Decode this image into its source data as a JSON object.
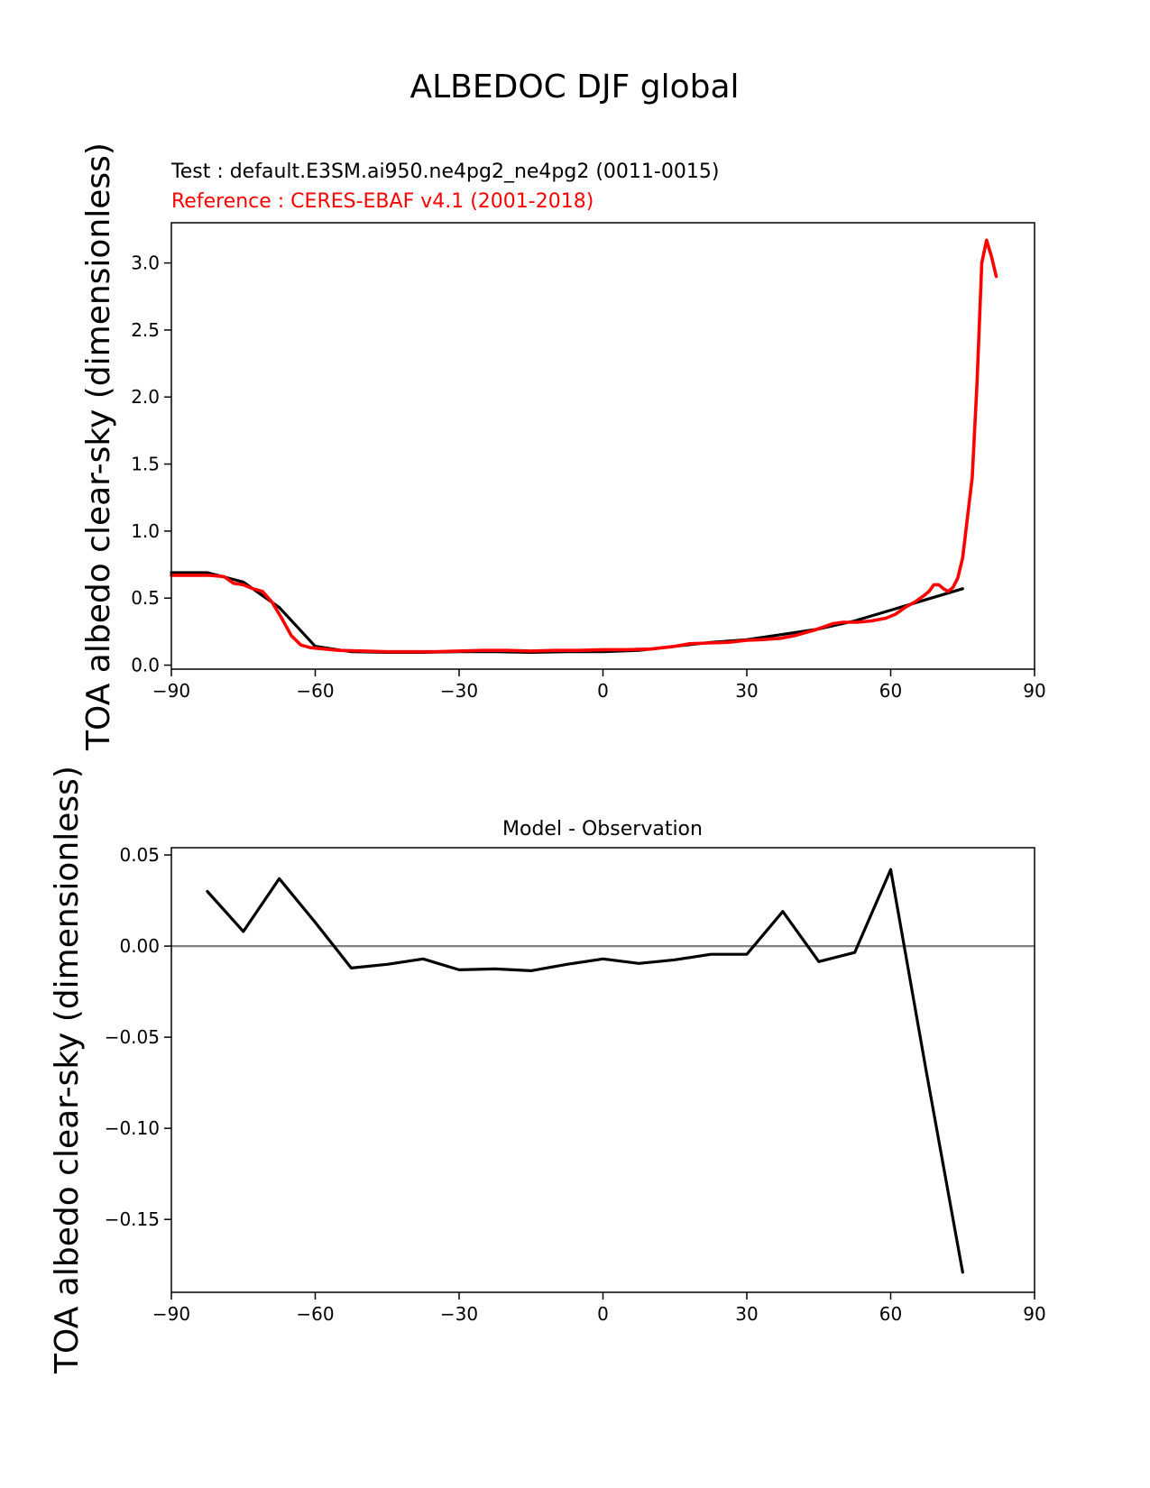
{
  "figure": {
    "suptitle": "ALBEDOC DJF global",
    "test_label": "Test : default.E3SM.ai950.ne4pg2_ne4pg2 (0011-0015)",
    "reference_label": "Reference : CERES-EBAF v4.1 (2001-2018)",
    "reference_color": "#ff0000",
    "test_color": "#000000",
    "zero_line_color": "#808080"
  },
  "chart_data": [
    {
      "type": "line",
      "title": "",
      "xlabel": "",
      "ylabel": "TOA albedo clear-sky (dimensionless)",
      "xlim": [
        -90,
        90
      ],
      "ylim": [
        -0.03,
        3.3
      ],
      "xticks": [
        -90,
        -60,
        -30,
        0,
        30,
        60,
        90
      ],
      "xtick_labels": [
        "−90",
        "−60",
        "−30",
        "0",
        "30",
        "60",
        "90"
      ],
      "yticks": [
        0.0,
        0.5,
        1.0,
        1.5,
        2.0,
        2.5,
        3.0
      ],
      "ytick_labels": [
        "0.0",
        "0.5",
        "1.0",
        "1.5",
        "2.0",
        "2.5",
        "3.0"
      ],
      "grid": false,
      "series": [
        {
          "role": "test",
          "color": "#000000",
          "x": [
            -90,
            -82.5,
            -75,
            -67.5,
            -60,
            -52.5,
            -45,
            -37.5,
            -30,
            -22.5,
            -15,
            -7.5,
            0,
            7.5,
            15,
            22.5,
            30,
            37.5,
            45,
            52.5,
            60,
            67.5,
            75
          ],
          "y": [
            0.69,
            0.69,
            0.62,
            0.43,
            0.14,
            0.1,
            0.095,
            0.095,
            0.1,
            0.1,
            0.095,
            0.1,
            0.1,
            0.11,
            0.14,
            0.17,
            0.19,
            0.23,
            0.27,
            0.33,
            0.41,
            0.49,
            0.57
          ]
        },
        {
          "role": "reference",
          "color": "#ff0000",
          "x": [
            -90,
            -86,
            -82,
            -79,
            -77,
            -75,
            -73,
            -71,
            -69,
            -67,
            -65,
            -63,
            -61,
            -58,
            -55,
            -50,
            -45,
            -40,
            -35,
            -30,
            -25,
            -20,
            -15,
            -10,
            -5,
            0,
            5,
            10,
            15,
            18,
            22,
            26,
            30,
            33,
            37,
            40,
            44,
            48,
            50,
            53,
            56,
            59,
            61,
            63,
            65,
            67,
            68,
            69,
            70,
            71,
            72,
            73,
            74,
            75,
            76,
            77,
            78,
            79,
            80,
            81,
            82
          ],
          "y": [
            0.67,
            0.67,
            0.67,
            0.66,
            0.61,
            0.6,
            0.57,
            0.55,
            0.47,
            0.35,
            0.22,
            0.15,
            0.13,
            0.12,
            0.11,
            0.105,
            0.1,
            0.1,
            0.1,
            0.105,
            0.11,
            0.11,
            0.105,
            0.11,
            0.11,
            0.115,
            0.115,
            0.12,
            0.14,
            0.16,
            0.165,
            0.17,
            0.185,
            0.19,
            0.2,
            0.22,
            0.26,
            0.31,
            0.32,
            0.32,
            0.33,
            0.35,
            0.38,
            0.43,
            0.47,
            0.52,
            0.55,
            0.6,
            0.6,
            0.57,
            0.55,
            0.58,
            0.65,
            0.8,
            1.1,
            1.4,
            2.1,
            3.0,
            3.17,
            3.05,
            2.9
          ]
        }
      ]
    },
    {
      "type": "line",
      "title": "Model - Observation",
      "xlabel": "",
      "ylabel": "TOA albedo clear-sky (dimensionless)",
      "xlim": [
        -90,
        90
      ],
      "ylim": [
        -0.19,
        0.054
      ],
      "xticks": [
        -90,
        -60,
        -30,
        0,
        30,
        60,
        90
      ],
      "xtick_labels": [
        "−90",
        "−60",
        "−30",
        "0",
        "30",
        "60",
        "90"
      ],
      "yticks": [
        0.05,
        0.0,
        -0.05,
        -0.1,
        -0.15
      ],
      "ytick_labels": [
        "0.05",
        "0.00",
        "−0.05",
        "−0.10",
        "−0.15"
      ],
      "grid": false,
      "zero_line": true,
      "series": [
        {
          "role": "difference",
          "color": "#000000",
          "x": [
            -82.5,
            -75,
            -67.5,
            -60,
            -52.5,
            -45,
            -37.5,
            -30,
            -22.5,
            -15,
            -7.5,
            0,
            7.5,
            15,
            22.5,
            30,
            37.5,
            45,
            52.5,
            60,
            67.5,
            75
          ],
          "y": [
            0.03,
            0.008,
            0.037,
            0.013,
            -0.012,
            -0.01,
            -0.007,
            -0.013,
            -0.0125,
            -0.0135,
            -0.01,
            -0.007,
            -0.0095,
            -0.0075,
            -0.0045,
            -0.0045,
            0.019,
            -0.0085,
            -0.0035,
            0.042,
            -0.07,
            -0.179
          ]
        }
      ]
    }
  ]
}
